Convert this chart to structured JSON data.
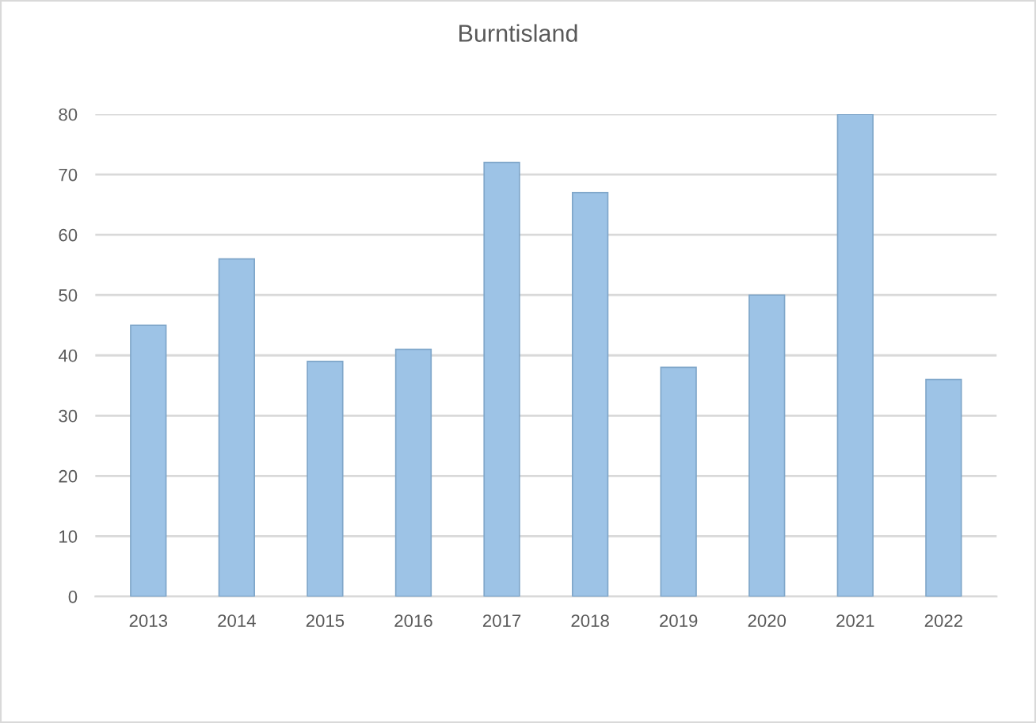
{
  "chart_data": {
    "type": "bar",
    "title": "Burntisland",
    "categories": [
      "2013",
      "2014",
      "2015",
      "2016",
      "2017",
      "2018",
      "2019",
      "2020",
      "2021",
      "2022"
    ],
    "values": [
      45,
      56,
      39,
      41,
      72,
      67,
      38,
      50,
      80,
      36
    ],
    "color": "#9dc3e6",
    "ylim": [
      0,
      80
    ],
    "yticks": [
      0,
      10,
      20,
      30,
      40,
      50,
      60,
      70,
      80
    ],
    "grid": "y",
    "legend": false
  }
}
